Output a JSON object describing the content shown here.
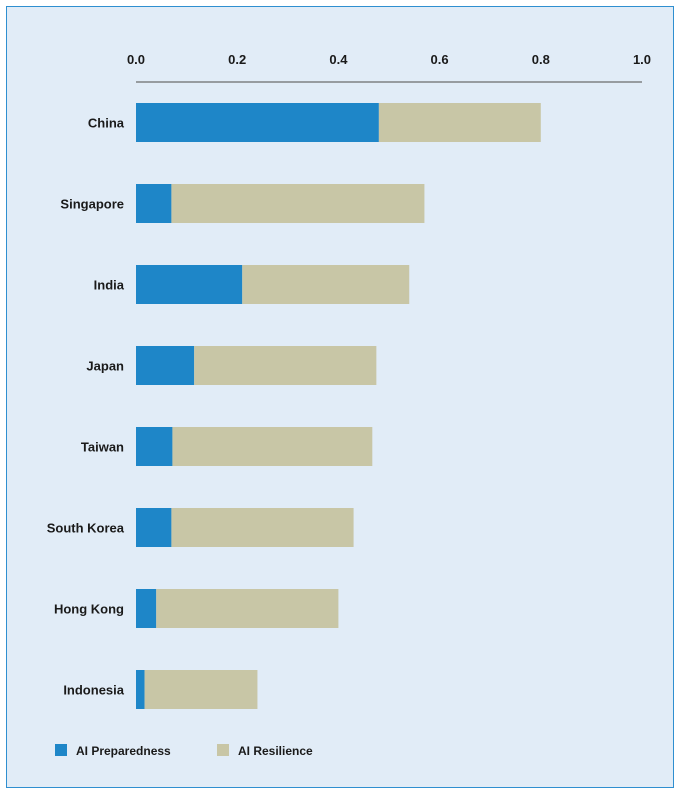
{
  "chart_data": {
    "type": "bar",
    "orientation": "horizontal",
    "stacked": true,
    "categories": [
      "China",
      "Singapore",
      "India",
      "Japan",
      "Taiwan",
      "South Korea",
      "Hong Kong",
      "Indonesia"
    ],
    "series": [
      {
        "name": "AI Preparedness",
        "color": "#1e86c8",
        "values": [
          0.48,
          0.07,
          0.21,
          0.115,
          0.072,
          0.07,
          0.04,
          0.017
        ]
      },
      {
        "name": "AI Resilience",
        "color": "#c8c6a6",
        "values": [
          0.32,
          0.5,
          0.33,
          0.36,
          0.395,
          0.36,
          0.36,
          0.223
        ]
      }
    ],
    "xlim": [
      0,
      1.0
    ],
    "xticks": [
      "0.0",
      "0.2",
      "0.4",
      "0.6",
      "0.8",
      "1.0"
    ],
    "xaxis_position": "top",
    "legend_position": "bottom-left",
    "grid": false
  }
}
